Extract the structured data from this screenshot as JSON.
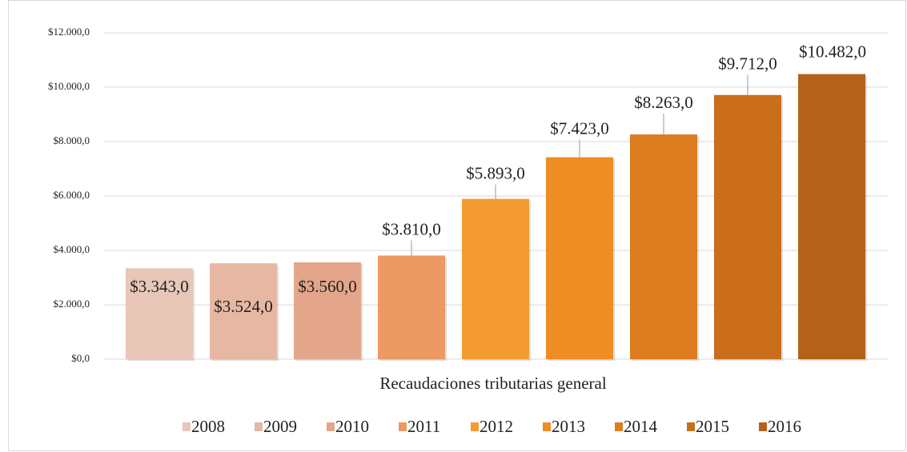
{
  "chart_data": {
    "type": "bar",
    "categories": [
      "Recaudaciones tributarias general"
    ],
    "series": [
      {
        "name": "2008",
        "color": "#e8c6b8",
        "values": [
          3343
        ],
        "value_labels": [
          "$3.343,0"
        ]
      },
      {
        "name": "2009",
        "color": "#e6b7a2",
        "values": [
          3524
        ],
        "value_labels": [
          "$3.524,0"
        ]
      },
      {
        "name": "2010",
        "color": "#e4a68a",
        "values": [
          3560
        ],
        "value_labels": [
          "$3.560,0"
        ]
      },
      {
        "name": "2011",
        "color": "#ec9a62",
        "values": [
          3810
        ],
        "value_labels": [
          "$3.810,0"
        ]
      },
      {
        "name": "2012",
        "color": "#f49b32",
        "values": [
          5893
        ],
        "value_labels": [
          "$5.893,0"
        ]
      },
      {
        "name": "2013",
        "color": "#ef8c24",
        "values": [
          7423
        ],
        "value_labels": [
          "$7.423,0"
        ]
      },
      {
        "name": "2014",
        "color": "#dd7d1f",
        "values": [
          8263
        ],
        "value_labels": [
          "$8.263,0"
        ]
      },
      {
        "name": "2015",
        "color": "#ca6e1c",
        "values": [
          9712
        ],
        "value_labels": [
          "$9.712,0"
        ]
      },
      {
        "name": "2016",
        "color": "#b5611a",
        "values": [
          10482
        ],
        "value_labels": [
          "$10.482,0"
        ]
      }
    ],
    "ylim": [
      0,
      12000
    ],
    "yticks": [
      {
        "value": 0,
        "label": "$0,0"
      },
      {
        "value": 2000,
        "label": "$2.000,0"
      },
      {
        "value": 4000,
        "label": "$4.000,0"
      },
      {
        "value": 6000,
        "label": "$6.000,0"
      },
      {
        "value": 8000,
        "label": "$8.000,0"
      },
      {
        "value": 10000,
        "label": "$10.000,0"
      },
      {
        "value": 12000,
        "label": "$12.000,0"
      }
    ],
    "grid": true,
    "legend": "bottom"
  }
}
